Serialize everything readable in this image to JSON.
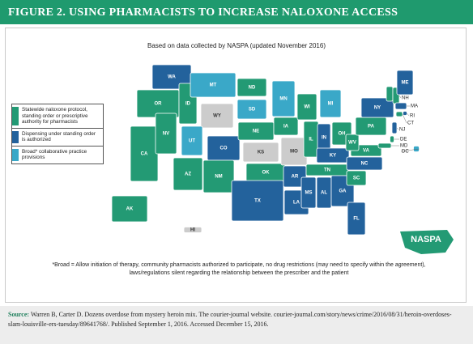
{
  "title": "FIGURE 2. USING PHARMACISTS TO INCREASE NALOXONE ACCESS",
  "subtitle": "Based on data collected by NASPA (updated November 2016)",
  "legend": [
    {
      "label": "Statewide naloxone protocol, standing order or prescriptive authority for pharmacists",
      "color": "#239a74"
    },
    {
      "label": "Dispensing under standing order is authorized",
      "color": "#23629c"
    },
    {
      "label": "Broad* collaborative practice provisions",
      "color": "#3aa8c8"
    },
    {
      "color": "#cccccc"
    }
  ],
  "states": [
    {
      "label": "WA",
      "category": 1
    },
    {
      "label": "OR",
      "category": 0
    },
    {
      "label": "CA",
      "category": 0
    },
    {
      "label": "NV",
      "category": 0
    },
    {
      "label": "ID",
      "category": 0
    },
    {
      "label": "MT",
      "category": 2
    },
    {
      "label": "WY",
      "category": 3
    },
    {
      "label": "UT",
      "category": 2
    },
    {
      "label": "CO",
      "category": 1
    },
    {
      "label": "AZ",
      "category": 0
    },
    {
      "label": "NM",
      "category": 0
    },
    {
      "label": "ND",
      "category": 0
    },
    {
      "label": "SD",
      "category": 2
    },
    {
      "label": "NE",
      "category": 0
    },
    {
      "label": "KS",
      "category": 3
    },
    {
      "label": "OK",
      "category": 0
    },
    {
      "label": "TX",
      "category": 1
    },
    {
      "label": "MN",
      "category": 2
    },
    {
      "label": "IA",
      "category": 0
    },
    {
      "label": "MO",
      "category": 3
    },
    {
      "label": "AR",
      "category": 1
    },
    {
      "label": "LA",
      "category": 1
    },
    {
      "label": "WI",
      "category": 0
    },
    {
      "label": "IL",
      "category": 0
    },
    {
      "label": "MI",
      "category": 2
    },
    {
      "label": "IN",
      "category": 1
    },
    {
      "label": "OH",
      "category": 0
    },
    {
      "label": "KY",
      "category": 1
    },
    {
      "label": "TN",
      "category": 0
    },
    {
      "label": "MS",
      "category": 1
    },
    {
      "label": "AL",
      "category": 1
    },
    {
      "label": "GA",
      "category": 1
    },
    {
      "label": "FL",
      "category": 1
    },
    {
      "label": "SC",
      "category": 0
    },
    {
      "label": "NC",
      "category": 1
    },
    {
      "label": "VA",
      "category": 0
    },
    {
      "label": "WV",
      "category": 0
    },
    {
      "label": "PA",
      "category": 0
    },
    {
      "label": "NY",
      "category": 1
    },
    {
      "label": null,
      "category": 0
    },
    {
      "label": "NH",
      "category": 0
    },
    {
      "label": "ME",
      "category": 1
    },
    {
      "label": "MA",
      "category": 1
    },
    {
      "label": "RI",
      "category": 1
    },
    {
      "label": "CT",
      "category": 0
    },
    {
      "label": "NJ",
      "category": 1
    },
    {
      "label": "DE",
      "category": 0
    },
    {
      "label": "MD",
      "category": 0
    },
    {
      "label": "DC",
      "category": 2
    },
    {
      "label": "AK",
      "category": 0
    },
    {
      "label": "HI",
      "category": 3
    }
  ],
  "footnote": "*Broad = Allow initiation of therapy, community pharmacists authorized to participate, no drug restrictions (may need to specify within the agreement), laws/regulations silent regarding the relationship between the prescriber and the patient",
  "source_label": "Source:",
  "source_text": "Warren B, Carter D. Dozens overdose from mystery heroin mix. The courier-journal website. courier-journal.com/story/news/crime/2016/08/31/heroin-overdoses-slam-louisville-ers-tuesday/89641768/. Published September 1, 2016. Accessed December 15, 2016.",
  "logo": "NASPA"
}
